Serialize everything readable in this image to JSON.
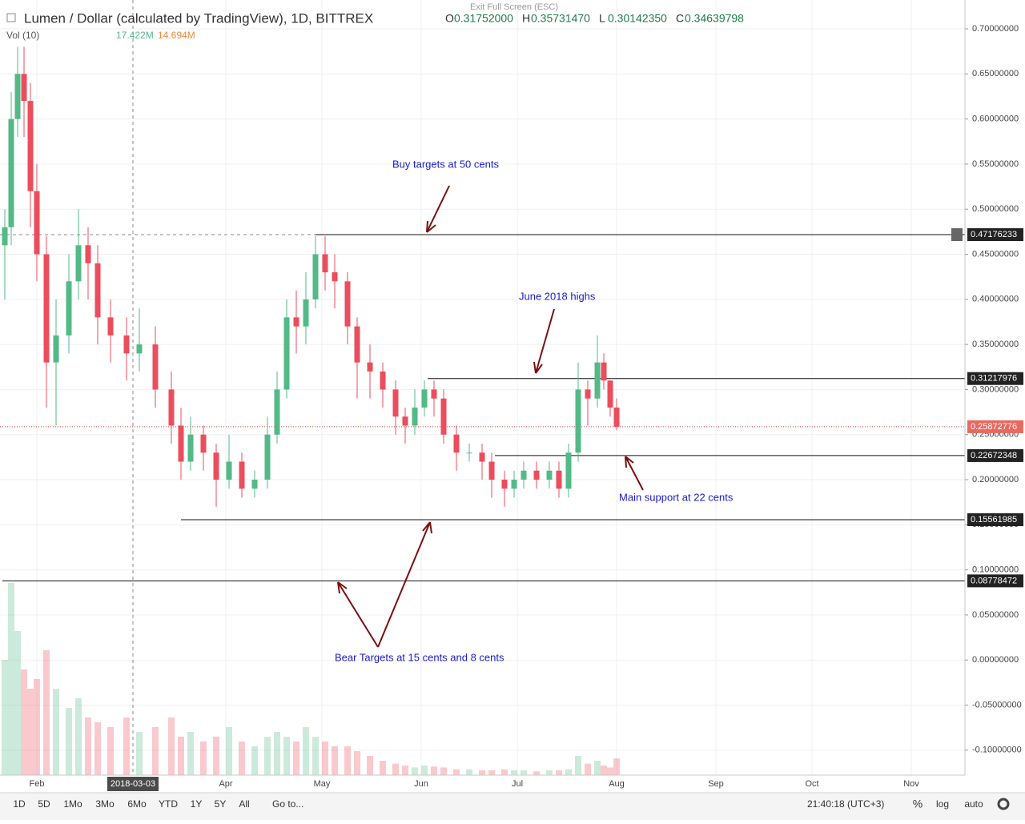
{
  "header": {
    "title": "Lumen / Dollar (calculated by TradingView), 1D, BITTREX",
    "ohlc": [
      {
        "key": "O",
        "value": "0.31752000"
      },
      {
        "key": "H",
        "value": "0.35731470"
      },
      {
        "key": "L",
        "value": "0.30142350"
      },
      {
        "key": "C",
        "value": "0.34639798"
      }
    ],
    "exit": "Exit Full Screen (ESC)",
    "volume": {
      "name": "Vol (10)",
      "last": "17.422M",
      "average": "14.694M"
    }
  },
  "chart_data": {
    "type": "candlestick",
    "x": [
      22,
      24,
      26,
      28,
      30,
      32,
      35,
      38,
      42,
      45,
      48,
      51,
      55,
      60,
      64,
      69,
      74,
      77,
      80,
      84,
      88,
      92,
      96,
      100,
      104,
      107,
      110,
      113,
      116,
      119,
      122,
      125,
      129,
      132,
      136,
      140,
      144,
      147,
      150,
      153,
      156,
      159,
      163,
      167,
      171,
      174,
      178,
      181,
      184,
      188,
      192,
      195,
      198,
      201,
      204,
      207,
      209,
      211,
      213
    ],
    "open": [
      0.46,
      0.48,
      0.6,
      0.65,
      0.62,
      0.52,
      0.45,
      0.33,
      0.36,
      0.42,
      0.46,
      0.44,
      0.38,
      0.36,
      0.34,
      0.35,
      0.3,
      0.26,
      0.22,
      0.25,
      0.23,
      0.2,
      0.22,
      0.19,
      0.2,
      0.25,
      0.3,
      0.38,
      0.37,
      0.4,
      0.45,
      0.43,
      0.42,
      0.37,
      0.33,
      0.32,
      0.3,
      0.27,
      0.26,
      0.28,
      0.3,
      0.29,
      0.25,
      0.23,
      0.23,
      0.22,
      0.2,
      0.19,
      0.2,
      0.21,
      0.2,
      0.21,
      0.19,
      0.23,
      0.3,
      0.29,
      0.33,
      0.31,
      0.28
    ],
    "high": [
      0.5,
      0.63,
      0.68,
      0.68,
      0.64,
      0.55,
      0.47,
      0.4,
      0.45,
      0.5,
      0.48,
      0.46,
      0.4,
      0.38,
      0.39,
      0.37,
      0.32,
      0.28,
      0.27,
      0.26,
      0.24,
      0.25,
      0.23,
      0.21,
      0.27,
      0.32,
      0.4,
      0.41,
      0.43,
      0.47,
      0.47,
      0.45,
      0.43,
      0.38,
      0.35,
      0.33,
      0.31,
      0.28,
      0.3,
      0.31,
      0.31,
      0.3,
      0.26,
      0.24,
      0.24,
      0.23,
      0.21,
      0.21,
      0.22,
      0.22,
      0.22,
      0.22,
      0.24,
      0.33,
      0.31,
      0.36,
      0.34,
      0.31,
      0.29
    ],
    "low": [
      0.4,
      0.46,
      0.58,
      0.58,
      0.48,
      0.42,
      0.28,
      0.26,
      0.34,
      0.4,
      0.4,
      0.35,
      0.33,
      0.31,
      0.32,
      0.28,
      0.24,
      0.2,
      0.21,
      0.21,
      0.17,
      0.19,
      0.18,
      0.18,
      0.19,
      0.24,
      0.29,
      0.34,
      0.35,
      0.39,
      0.41,
      0.39,
      0.35,
      0.29,
      0.29,
      0.28,
      0.25,
      0.24,
      0.25,
      0.27,
      0.27,
      0.24,
      0.21,
      0.22,
      0.2,
      0.18,
      0.17,
      0.18,
      0.19,
      0.19,
      0.19,
      0.18,
      0.18,
      0.22,
      0.26,
      0.28,
      0.3,
      0.27,
      0.255
    ],
    "close": [
      0.48,
      0.6,
      0.65,
      0.62,
      0.52,
      0.45,
      0.33,
      0.36,
      0.42,
      0.46,
      0.44,
      0.38,
      0.36,
      0.34,
      0.35,
      0.3,
      0.26,
      0.22,
      0.25,
      0.23,
      0.2,
      0.22,
      0.19,
      0.2,
      0.25,
      0.3,
      0.38,
      0.37,
      0.4,
      0.45,
      0.43,
      0.42,
      0.37,
      0.33,
      0.32,
      0.3,
      0.27,
      0.26,
      0.28,
      0.3,
      0.29,
      0.25,
      0.23,
      0.23,
      0.22,
      0.2,
      0.19,
      0.2,
      0.21,
      0.2,
      0.21,
      0.19,
      0.23,
      0.3,
      0.29,
      0.33,
      0.31,
      0.28,
      0.25872776
    ],
    "volume": [
      120,
      200,
      150,
      110,
      90,
      100,
      130,
      90,
      70,
      80,
      60,
      55,
      50,
      60,
      45,
      50,
      60,
      40,
      45,
      35,
      40,
      50,
      35,
      30,
      40,
      45,
      40,
      35,
      50,
      40,
      35,
      30,
      30,
      25,
      20,
      15,
      12,
      10,
      8,
      10,
      9,
      8,
      6,
      6,
      5,
      5,
      6,
      5,
      5,
      4,
      5,
      5,
      6,
      20,
      12,
      15,
      10,
      8,
      17.422
    ],
    "up_color": "#53b987",
    "down_color": "#eb4d5c",
    "xlim": [
      20.5,
      321.75
    ],
    "ylim": [
      -0.1277,
      0.732
    ],
    "yticks": [
      {
        "value": 0.7,
        "label": "0.70000000"
      },
      {
        "value": 0.65,
        "label": "0.65000000"
      },
      {
        "value": 0.6,
        "label": "0.60000000"
      },
      {
        "value": 0.55,
        "label": "0.55000000"
      },
      {
        "value": 0.5,
        "label": "0.50000000"
      },
      {
        "value": 0.45,
        "label": "0.45000000"
      },
      {
        "value": 0.4,
        "label": "0.40000000"
      },
      {
        "value": 0.35,
        "label": "0.35000000"
      },
      {
        "value": 0.3,
        "label": "0.30000000"
      },
      {
        "value": 0.25,
        "label": "0.25000000"
      },
      {
        "value": 0.2,
        "label": "0.20000000"
      },
      {
        "value": 0.15,
        "label": "0.15000000"
      },
      {
        "value": 0.1,
        "label": "0.10000000"
      },
      {
        "value": 0.05,
        "label": "0.05000000"
      },
      {
        "value": 0,
        "label": "0.00000000"
      },
      {
        "value": -0.05,
        "label": "-0.05000000"
      },
      {
        "value": -0.1,
        "label": "-0.10000000"
      }
    ],
    "xticks": [
      {
        "value": 32,
        "label": "Feb"
      },
      {
        "value": 91,
        "label": "Apr"
      },
      {
        "value": 121,
        "label": "May"
      },
      {
        "value": 152,
        "label": "Jun"
      },
      {
        "value": 182,
        "label": "Jul"
      },
      {
        "value": 213,
        "label": "Aug"
      },
      {
        "value": 244,
        "label": "Sep"
      },
      {
        "value": 274,
        "label": "Oct"
      },
      {
        "value": 305,
        "label": "Nov"
      }
    ],
    "crosshair": {
      "value": 62,
      "label": "2018-03-03"
    },
    "grid": true,
    "levels": [
      {
        "value": 0.47176233,
        "start": 119,
        "style": "black"
      },
      {
        "value": 0.31217976,
        "start": 154,
        "style": "black"
      },
      {
        "value": 0.25872776,
        "start": 20.5,
        "style": "current"
      },
      {
        "value": 0.22672348,
        "start": 175,
        "style": "black"
      },
      {
        "value": 0.15561985,
        "start": 77,
        "style": "black"
      },
      {
        "value": 0.08778472,
        "start": 21.25,
        "style": "black"
      }
    ],
    "annotations": [
      "Buy targets at 50 cents",
      "June 2018 highs",
      "Main support at 22 cents",
      "Bear Targets at 15 cents and 8 cents"
    ]
  },
  "toolbar": {
    "ranges": [
      "1D",
      "5D",
      "1Mo",
      "3Mo",
      "6Mo",
      "YTD",
      "1Y",
      "5Y",
      "All"
    ],
    "goto": "Go to...",
    "time": "21:40:18 (UTC+3)",
    "percent": "%",
    "log": "log",
    "auto": "auto"
  }
}
